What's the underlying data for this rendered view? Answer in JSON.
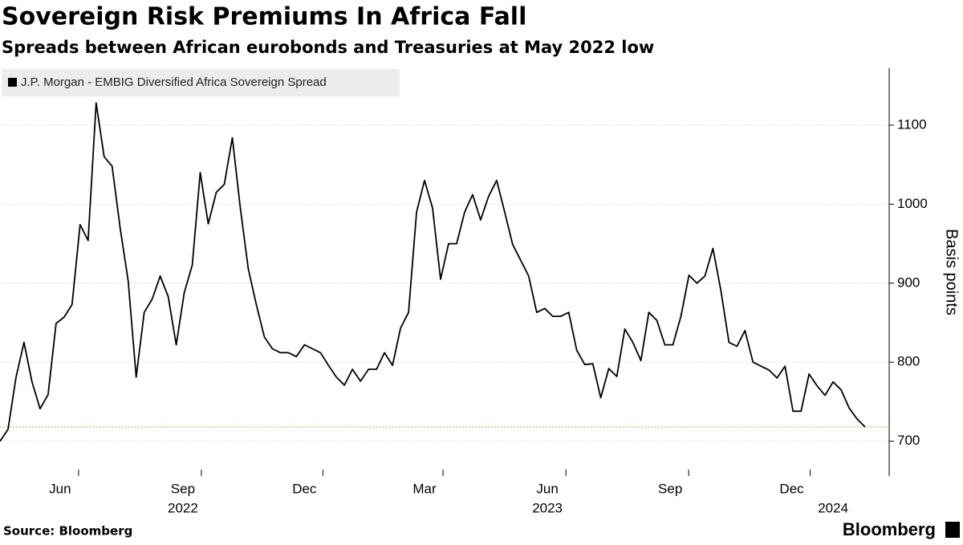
{
  "chart_data": {
    "type": "line",
    "title": "Sovereign Risk Premiums In Africa Fall",
    "subtitle": "Spreads between African eurobonds and Treasuries at May 2022 low",
    "y_axis_label": "Basis points",
    "source": "Source: Bloomberg",
    "brand": "Bloomberg",
    "x": [
      "2022-04-17",
      "2022-04-23",
      "2022-04-29",
      "2022-05-05",
      "2022-05-11",
      "2022-05-17",
      "2022-05-23",
      "2022-05-29",
      "2022-06-04",
      "2022-06-10",
      "2022-06-16",
      "2022-06-22",
      "2022-06-28",
      "2022-07-04",
      "2022-07-10",
      "2022-07-16",
      "2022-07-22",
      "2022-07-28",
      "2022-08-03",
      "2022-08-09",
      "2022-08-15",
      "2022-08-21",
      "2022-08-27",
      "2022-09-02",
      "2022-09-08",
      "2022-09-14",
      "2022-09-20",
      "2022-09-26",
      "2022-10-02",
      "2022-10-08",
      "2022-10-14",
      "2022-10-20",
      "2022-10-26",
      "2022-11-01",
      "2022-11-07",
      "2022-11-13",
      "2022-11-19",
      "2022-11-25",
      "2022-12-01",
      "2022-12-07",
      "2022-12-13",
      "2022-12-19",
      "2022-12-25",
      "2022-12-31",
      "2023-01-06",
      "2023-01-12",
      "2023-01-18",
      "2023-01-24",
      "2023-01-30",
      "2023-02-05",
      "2023-02-11",
      "2023-02-17",
      "2023-02-23",
      "2023-03-01",
      "2023-03-07",
      "2023-03-13",
      "2023-03-19",
      "2023-03-25",
      "2023-03-31",
      "2023-04-06",
      "2023-04-12",
      "2023-04-18",
      "2023-04-24",
      "2023-04-30",
      "2023-05-06",
      "2023-05-12",
      "2023-05-18",
      "2023-05-24",
      "2023-05-30",
      "2023-06-05",
      "2023-06-11",
      "2023-06-17",
      "2023-06-23",
      "2023-06-29",
      "2023-07-05",
      "2023-07-11",
      "2023-07-17",
      "2023-07-23",
      "2023-07-29",
      "2023-08-04",
      "2023-08-10",
      "2023-08-16",
      "2023-08-22",
      "2023-08-28",
      "2023-09-03",
      "2023-09-09",
      "2023-09-15",
      "2023-09-21",
      "2023-09-27",
      "2023-10-03",
      "2023-10-09",
      "2023-10-15",
      "2023-10-21",
      "2023-10-27",
      "2023-11-02",
      "2023-11-08",
      "2023-11-14",
      "2023-11-20",
      "2023-11-26",
      "2023-12-02",
      "2023-12-08",
      "2023-12-14",
      "2023-12-20",
      "2023-12-26",
      "2024-01-01",
      "2024-01-07",
      "2024-01-13",
      "2024-01-19",
      "2024-01-25"
    ],
    "series": [
      {
        "name": "J.P. Morgan - EMBIG Diversified Africa Sovereign Spread",
        "color": "#000000",
        "values": [
          700,
          715,
          781,
          825,
          775,
          741,
          759,
          849,
          857,
          873,
          974,
          954,
          1128,
          1060,
          1048,
          970,
          903,
          781,
          863,
          880,
          909,
          883,
          822,
          888,
          923,
          1040,
          975,
          1015,
          1025,
          1084,
          995,
          918,
          873,
          832,
          817,
          812,
          812,
          807,
          822,
          817,
          812,
          796,
          781,
          771,
          791,
          776,
          791,
          791,
          812,
          796,
          843,
          863,
          990,
          1030,
          995,
          905,
          950,
          950,
          990,
          1012,
          980,
          1010,
          1030,
          990,
          949,
          929,
          909,
          863,
          868,
          858,
          858,
          863,
          815,
          797,
          798,
          755,
          792,
          782,
          842,
          825,
          802,
          863,
          853,
          822,
          822,
          858,
          910,
          900,
          909,
          944,
          890,
          825,
          820,
          840,
          800,
          795,
          790,
          780,
          795,
          738,
          738,
          785,
          770,
          758,
          775,
          765,
          742,
          728,
          718
        ]
      }
    ],
    "xlim": [
      "2022-04-17",
      "2024-02-12"
    ],
    "xticks": [
      {
        "value": "2022-06",
        "label": "Jun"
      },
      {
        "value": "2022-09",
        "label": "Sep"
      },
      {
        "value": "2022-12",
        "label": "Dec"
      },
      {
        "value": "2023-03",
        "label": "Mar"
      },
      {
        "value": "2023-06",
        "label": "Jun"
      },
      {
        "value": "2023-09",
        "label": "Sep"
      },
      {
        "value": "2023-12",
        "label": "Dec"
      }
    ],
    "year_labels": [
      {
        "value": "2022-09",
        "label": "2022"
      },
      {
        "value": "2023-06",
        "label": "2023"
      },
      {
        "value": "2024-01",
        "label": "2024"
      }
    ],
    "ylim": [
      656,
      1172
    ],
    "yticks": [
      700,
      800,
      900,
      1000,
      1100
    ],
    "reference_line": {
      "value": 718,
      "color": "#7ed957"
    },
    "grid": true,
    "legend": "top-left"
  }
}
